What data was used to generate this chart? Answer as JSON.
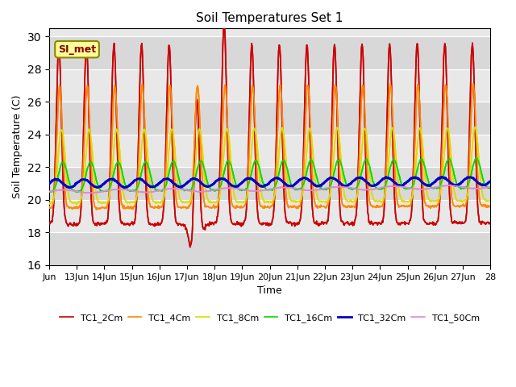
{
  "title": "Soil Temperatures Set 1",
  "xlabel": "Time",
  "ylabel": "Soil Temperature (C)",
  "ylim": [
    16,
    30.5
  ],
  "xlim_days": [
    0,
    16
  ],
  "annotation": "SI_met",
  "series": {
    "TC1_2Cm": {
      "color": "#cc0000",
      "lw": 1.2
    },
    "TC1_4Cm": {
      "color": "#ff8800",
      "lw": 1.2
    },
    "TC1_8Cm": {
      "color": "#dddd00",
      "lw": 1.2
    },
    "TC1_16Cm": {
      "color": "#00dd00",
      "lw": 1.2
    },
    "TC1_32Cm": {
      "color": "#0000cc",
      "lw": 2.0
    },
    "TC1_50Cm": {
      "color": "#dd88dd",
      "lw": 1.2
    }
  },
  "x_tick_labels": [
    "Jun",
    "13Jun",
    "14Jun",
    "15Jun",
    "16Jun",
    "17Jun",
    "18Jun",
    "19Jun",
    "20Jun",
    "21Jun",
    "22Jun",
    "23Jun",
    "24Jun",
    "25Jun",
    "26Jun",
    "27Jun",
    "28"
  ],
  "x_tick_positions": [
    0,
    1,
    2,
    3,
    4,
    5,
    6,
    7,
    8,
    9,
    10,
    11,
    12,
    13,
    14,
    15,
    16
  ],
  "ytick_positions": [
    16,
    18,
    20,
    22,
    24,
    26,
    28,
    30
  ]
}
